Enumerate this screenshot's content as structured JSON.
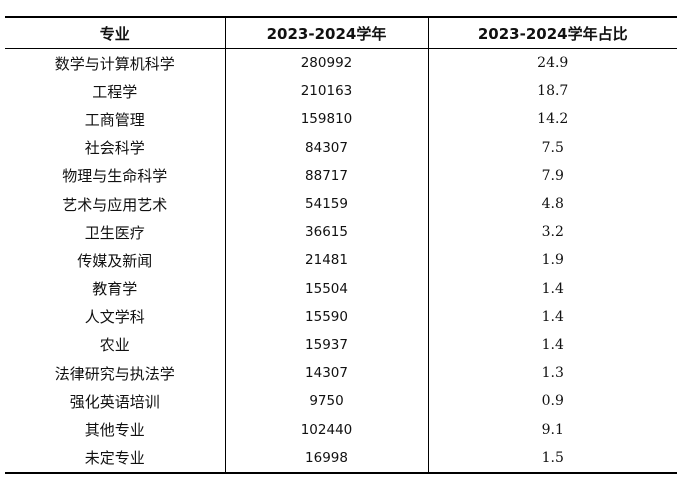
{
  "table": {
    "headers": [
      "专业",
      "2023-2024学年",
      "2023-2024学年占比"
    ],
    "rows": [
      {
        "major": "数学与计算机科学",
        "count": "280992",
        "share": "24.9"
      },
      {
        "major": "工程学",
        "count": "210163",
        "share": "18.7"
      },
      {
        "major": "工商管理",
        "count": "159810",
        "share": "14.2"
      },
      {
        "major": "社会科学",
        "count": "84307",
        "share": "7.5"
      },
      {
        "major": "物理与生命科学",
        "count": "88717",
        "share": "7.9"
      },
      {
        "major": "艺术与应用艺术",
        "count": "54159",
        "share": "4.8"
      },
      {
        "major": "卫生医疗",
        "count": "36615",
        "share": "3.2"
      },
      {
        "major": "传媒及新闻",
        "count": "21481",
        "share": "1.9"
      },
      {
        "major": "教育学",
        "count": "15504",
        "share": "1.4"
      },
      {
        "major": "人文学科",
        "count": "15590",
        "share": "1.4"
      },
      {
        "major": "农业",
        "count": "15937",
        "share": "1.4"
      },
      {
        "major": "法律研究与执法学",
        "count": "14307",
        "share": "1.3"
      },
      {
        "major": "强化英语培训",
        "count": "9750",
        "share": "0.9"
      },
      {
        "major": "其他专业",
        "count": "102440",
        "share": "9.1"
      },
      {
        "major": "未定专业",
        "count": "16998",
        "share": "1.5"
      }
    ]
  }
}
